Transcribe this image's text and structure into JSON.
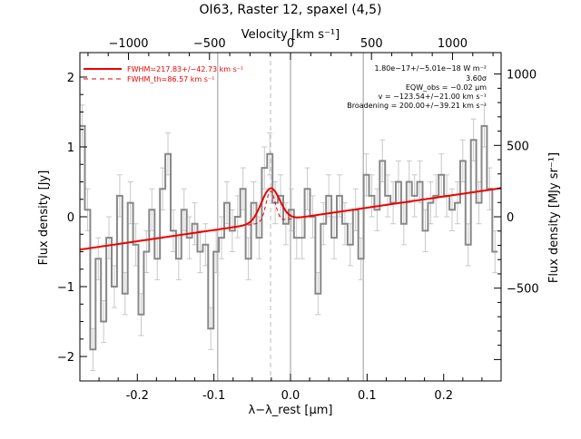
{
  "chart_data": {
    "type": "line",
    "title": "OI63, Raster 12, spaxel (4,5)",
    "xlabel": "λ−λ_rest [μm]",
    "ylabel": "Flux density [Jy]",
    "top_axis_label": "Velocity [km s⁻¹]",
    "right_axis_label": "Flux density [MJy sr⁻¹]",
    "xlim": [
      -0.275,
      0.275
    ],
    "ylim": [
      -2.35,
      2.35
    ],
    "top_axis": {
      "range": [
        -1300,
        1300
      ],
      "ticks": [
        -1000,
        -500,
        0,
        500,
        1000
      ]
    },
    "right_axis": {
      "range": [
        -1150,
        1150
      ],
      "ticks": [
        -500,
        0,
        500,
        1000
      ]
    },
    "x_ticks": [
      -0.2,
      -0.1,
      0.0,
      0.1,
      0.2
    ],
    "y_ticks": [
      -2,
      -1,
      0,
      1,
      2
    ],
    "vertical_lines_solid": [
      -0.095,
      0.0,
      0.095
    ],
    "vertical_line_dashed": -0.026,
    "data_step": {
      "name": "",
      "x": [
        -0.272,
        -0.265,
        -0.258,
        -0.251,
        -0.244,
        -0.237,
        -0.23,
        -0.223,
        -0.216,
        -0.209,
        -0.202,
        -0.195,
        -0.188,
        -0.181,
        -0.174,
        -0.167,
        -0.16,
        -0.153,
        -0.146,
        -0.139,
        -0.132,
        -0.125,
        -0.118,
        -0.111,
        -0.104,
        -0.097,
        -0.09,
        -0.083,
        -0.076,
        -0.069,
        -0.062,
        -0.055,
        -0.048,
        -0.041,
        -0.034,
        -0.027,
        -0.02,
        -0.013,
        -0.006,
        0.001,
        0.008,
        0.015,
        0.022,
        0.029,
        0.036,
        0.043,
        0.05,
        0.057,
        0.064,
        0.071,
        0.078,
        0.085,
        0.092,
        0.099,
        0.106,
        0.113,
        0.12,
        0.127,
        0.134,
        0.141,
        0.148,
        0.155,
        0.162,
        0.169,
        0.176,
        0.183,
        0.19,
        0.197,
        0.204,
        0.211,
        0.218,
        0.225,
        0.232,
        0.239,
        0.246,
        0.253,
        0.26,
        0.267
      ],
      "y": [
        1.3,
        0.1,
        -1.9,
        -0.6,
        -1.5,
        -0.3,
        -1.0,
        0.3,
        -1.1,
        0.2,
        -0.4,
        -1.4,
        -0.5,
        0.1,
        -0.6,
        0.4,
        0.9,
        -0.2,
        -0.6,
        0.1,
        -0.3,
        -0.1,
        -0.5,
        -0.4,
        -1.6,
        -0.5,
        -0.3,
        0.2,
        -0.2,
        0.0,
        0.4,
        -0.6,
        0.2,
        -0.3,
        0.7,
        0.9,
        0.2,
        0.3,
        -0.1,
        0.1,
        -0.3,
        -0.3,
        0.4,
        0.0,
        -1.1,
        -0.1,
        0.3,
        -0.3,
        0.3,
        -0.1,
        -0.4,
        0.1,
        -0.6,
        0.6,
        0.3,
        0.1,
        0.8,
        0.3,
        0.2,
        0.5,
        -0.1,
        0.5,
        0.3,
        0.5,
        -0.2,
        0.2,
        0.3,
        0.6,
        0.3,
        0.1,
        0.2,
        0.8,
        -0.4,
        1.1,
        0.2,
        1.3,
        0.4,
        -0.5
      ],
      "err": 0.3
    },
    "series": [
      {
        "name": "FWHM=217.83+/−42.73 km s⁻¹",
        "baseline": {
          "at_left": -0.47,
          "at_right": 0.41,
          "curvature": 0.35
        },
        "gaussian": {
          "center": -0.026,
          "sigma": 0.012,
          "amplitude": 0.48
        }
      },
      {
        "name": "FWHM_th=86.57 km s⁻¹",
        "gaussian": {
          "center": -0.026,
          "sigma": 0.006,
          "amplitude": 0.44
        }
      }
    ],
    "annotations": [
      "1.80e−17+/−5.01e−18 W m⁻²",
      "3.60σ",
      "EQW_obs = −0.02 μm",
      "v = −123.54+/−21.00 km s⁻¹",
      "Broadening = 200.00+/−39.21 km s⁻¹"
    ],
    "colors": {
      "data": "#888888",
      "fit": "#ee0000",
      "frame": "#000000",
      "grid": "#999999"
    }
  }
}
